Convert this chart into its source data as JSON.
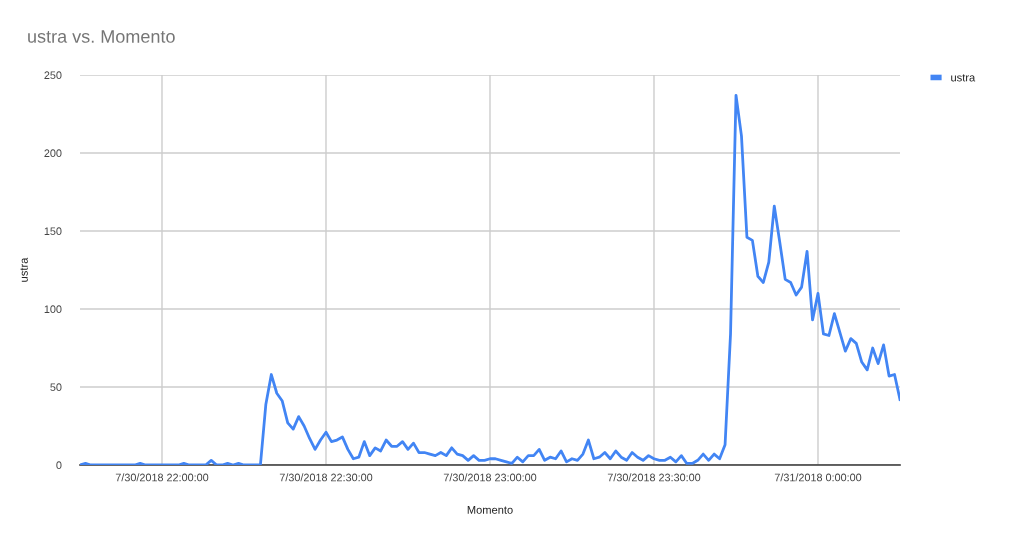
{
  "chart_data": {
    "type": "line",
    "title": "ustra vs. Momento",
    "xlabel": "Momento",
    "ylabel": "ustra",
    "x": [
      "2018-07-30T21:45",
      "2018-07-30T21:46",
      "2018-07-30T21:47",
      "2018-07-30T21:55",
      "2018-07-30T21:56",
      "2018-07-30T21:57",
      "2018-07-30T22:03",
      "2018-07-30T22:04",
      "2018-07-30T22:05",
      "2018-07-30T22:08",
      "2018-07-30T22:09",
      "2018-07-30T22:10",
      "2018-07-30T22:11",
      "2018-07-30T22:12",
      "2018-07-30T22:13",
      "2018-07-30T22:14",
      "2018-07-30T22:15",
      "2018-07-30T22:18",
      "2018-07-30T22:19",
      "2018-07-30T22:20",
      "2018-07-30T22:21",
      "2018-07-30T22:22",
      "2018-07-30T22:23",
      "2018-07-30T22:24",
      "2018-07-30T22:25",
      "2018-07-30T22:26",
      "2018-07-30T22:27",
      "2018-07-30T22:28",
      "2018-07-30T22:29",
      "2018-07-30T22:30",
      "2018-07-30T22:31",
      "2018-07-30T22:32",
      "2018-07-30T22:33",
      "2018-07-30T22:34",
      "2018-07-30T22:35",
      "2018-07-30T22:36",
      "2018-07-30T22:37",
      "2018-07-30T22:38",
      "2018-07-30T22:39",
      "2018-07-30T22:40",
      "2018-07-30T22:41",
      "2018-07-30T22:42",
      "2018-07-30T22:43",
      "2018-07-30T22:44",
      "2018-07-30T22:45",
      "2018-07-30T22:46",
      "2018-07-30T22:47",
      "2018-07-30T22:48",
      "2018-07-30T22:49",
      "2018-07-30T22:50",
      "2018-07-30T22:51",
      "2018-07-30T22:52",
      "2018-07-30T22:53",
      "2018-07-30T22:54",
      "2018-07-30T22:55",
      "2018-07-30T22:56",
      "2018-07-30T22:57",
      "2018-07-30T22:58",
      "2018-07-30T22:59",
      "2018-07-30T23:00",
      "2018-07-30T23:01",
      "2018-07-30T23:02",
      "2018-07-30T23:03",
      "2018-07-30T23:04",
      "2018-07-30T23:05",
      "2018-07-30T23:06",
      "2018-07-30T23:07",
      "2018-07-30T23:08",
      "2018-07-30T23:09",
      "2018-07-30T23:10",
      "2018-07-30T23:11",
      "2018-07-30T23:12",
      "2018-07-30T23:13",
      "2018-07-30T23:14",
      "2018-07-30T23:15",
      "2018-07-30T23:16",
      "2018-07-30T23:17",
      "2018-07-30T23:18",
      "2018-07-30T23:19",
      "2018-07-30T23:20",
      "2018-07-30T23:21",
      "2018-07-30T23:22",
      "2018-07-30T23:23",
      "2018-07-30T23:24",
      "2018-07-30T23:25",
      "2018-07-30T23:26",
      "2018-07-30T23:27",
      "2018-07-30T23:28",
      "2018-07-30T23:29",
      "2018-07-30T23:30",
      "2018-07-30T23:31",
      "2018-07-30T23:32",
      "2018-07-30T23:33",
      "2018-07-30T23:34",
      "2018-07-30T23:35",
      "2018-07-30T23:36",
      "2018-07-30T23:37",
      "2018-07-30T23:38",
      "2018-07-30T23:39",
      "2018-07-30T23:40",
      "2018-07-30T23:41",
      "2018-07-30T23:42",
      "2018-07-30T23:43",
      "2018-07-30T23:44",
      "2018-07-30T23:45",
      "2018-07-30T23:46",
      "2018-07-30T23:47",
      "2018-07-30T23:48",
      "2018-07-30T23:49",
      "2018-07-30T23:50",
      "2018-07-30T23:51",
      "2018-07-30T23:52",
      "2018-07-30T23:53",
      "2018-07-30T23:54",
      "2018-07-30T23:55",
      "2018-07-30T23:56",
      "2018-07-30T23:57",
      "2018-07-30T23:58",
      "2018-07-30T23:59",
      "2018-07-31T00:00",
      "2018-07-31T00:01",
      "2018-07-31T00:02",
      "2018-07-31T00:03",
      "2018-07-31T00:04",
      "2018-07-31T00:05",
      "2018-07-31T00:06",
      "2018-07-31T00:07",
      "2018-07-31T00:08",
      "2018-07-31T00:09",
      "2018-07-31T00:10",
      "2018-07-31T00:11",
      "2018-07-31T00:12",
      "2018-07-31T00:13",
      "2018-07-31T00:14",
      "2018-07-31T00:15"
    ],
    "series": [
      {
        "name": "ustra",
        "color": "#4285f4",
        "values": [
          0,
          1,
          0,
          0,
          1,
          0,
          0,
          1,
          0,
          0,
          3,
          0,
          0,
          1,
          0,
          1,
          0,
          0,
          39,
          58,
          46,
          41,
          27,
          23,
          31,
          25,
          17,
          10,
          16,
          21,
          15,
          16,
          18,
          10,
          4,
          5,
          15,
          6,
          11,
          9,
          16,
          12,
          12,
          15,
          10,
          14,
          8,
          8,
          7,
          6,
          8,
          6,
          11,
          7,
          6,
          3,
          6,
          3,
          3,
          4,
          4,
          3,
          2,
          1,
          5,
          2,
          6,
          6,
          10,
          3,
          5,
          4,
          9,
          2,
          4,
          3,
          7,
          16,
          4,
          5,
          8,
          4,
          9,
          5,
          3,
          8,
          5,
          3,
          6,
          4,
          3,
          3,
          5,
          2,
          6,
          1,
          1,
          3,
          7,
          3,
          7,
          4,
          13,
          84,
          237,
          211,
          146,
          144,
          121,
          117,
          130,
          166,
          143,
          119,
          117,
          109,
          114,
          137,
          93,
          110,
          84,
          83,
          97,
          85,
          73,
          81,
          78,
          66,
          61,
          75,
          65,
          77,
          57,
          58,
          42
        ]
      }
    ],
    "xlim": [
      "2018-07-30T21:45",
      "2018-07-31T00:15"
    ],
    "xticks": [
      {
        "value": "2018-07-30T22:00",
        "label": "7/30/2018 22:00:00"
      },
      {
        "value": "2018-07-30T22:30",
        "label": "7/30/2018 22:30:00"
      },
      {
        "value": "2018-07-30T23:00",
        "label": "7/30/2018 23:00:00"
      },
      {
        "value": "2018-07-30T23:30",
        "label": "7/30/2018 23:30:00"
      },
      {
        "value": "2018-07-31T00:00",
        "label": "7/31/2018 0:00:00"
      }
    ],
    "ylim": [
      0,
      250
    ],
    "yticks": [
      0,
      50,
      100,
      150,
      200,
      250
    ],
    "grid": true,
    "legend": "top right"
  }
}
